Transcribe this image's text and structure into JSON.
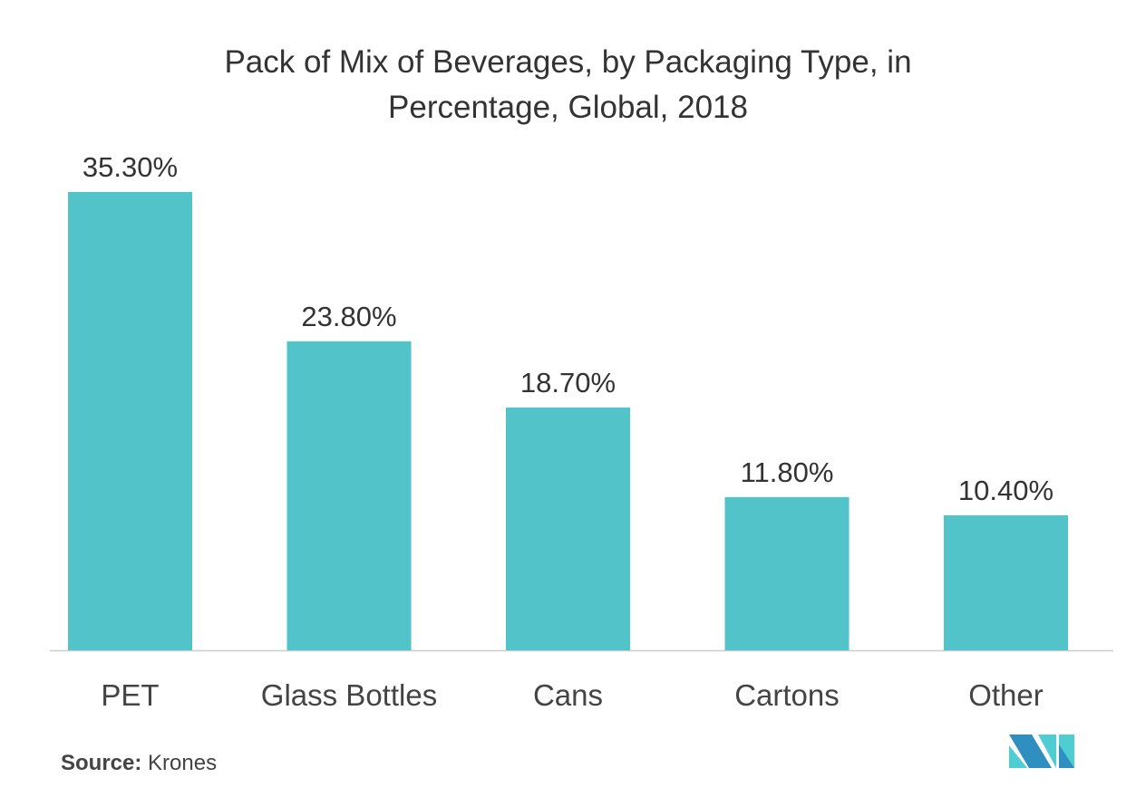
{
  "chart_data": {
    "type": "bar",
    "title_lines": [
      "Pack of Mix of Beverages, by Packaging Type, in",
      "Percentage, Global, 2018"
    ],
    "categories": [
      "PET",
      "Glass Bottles",
      "Cans",
      "Cartons",
      "Other"
    ],
    "values": [
      35.3,
      23.8,
      18.7,
      11.8,
      10.4
    ],
    "data_labels": [
      "35.30%",
      "23.80%",
      "18.70%",
      "11.80%",
      "10.40%"
    ],
    "xlabel": "",
    "ylabel": "",
    "ylim": [
      0,
      35.3
    ],
    "grid": false,
    "bar_color": "#51c3c9"
  },
  "source": {
    "label": "Source:",
    "value": "Krones"
  },
  "logo": {
    "colors": [
      "#2e8fc0",
      "#4ecdd2"
    ]
  }
}
